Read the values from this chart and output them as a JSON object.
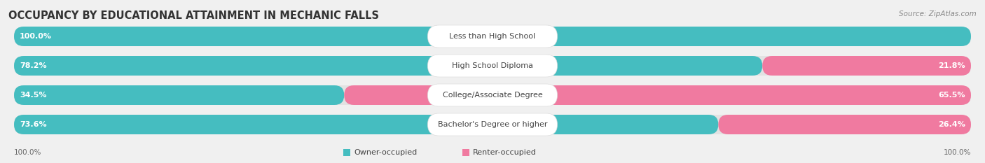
{
  "title": "OCCUPANCY BY EDUCATIONAL ATTAINMENT IN MECHANIC FALLS",
  "source": "Source: ZipAtlas.com",
  "categories": [
    "Less than High School",
    "High School Diploma",
    "College/Associate Degree",
    "Bachelor's Degree or higher"
  ],
  "owner_values": [
    100.0,
    78.2,
    34.5,
    73.6
  ],
  "renter_values": [
    0.0,
    21.8,
    65.5,
    26.4
  ],
  "owner_color": "#45BDC0",
  "renter_color": "#F07AA0",
  "bar_bg_color": "#E2E2E2",
  "fig_bg_color": "#F0F0F0",
  "title_fontsize": 10.5,
  "source_fontsize": 7.5,
  "bar_label_fontsize": 8,
  "category_fontsize": 8,
  "legend_fontsize": 8,
  "axis_label_fontsize": 7.5
}
